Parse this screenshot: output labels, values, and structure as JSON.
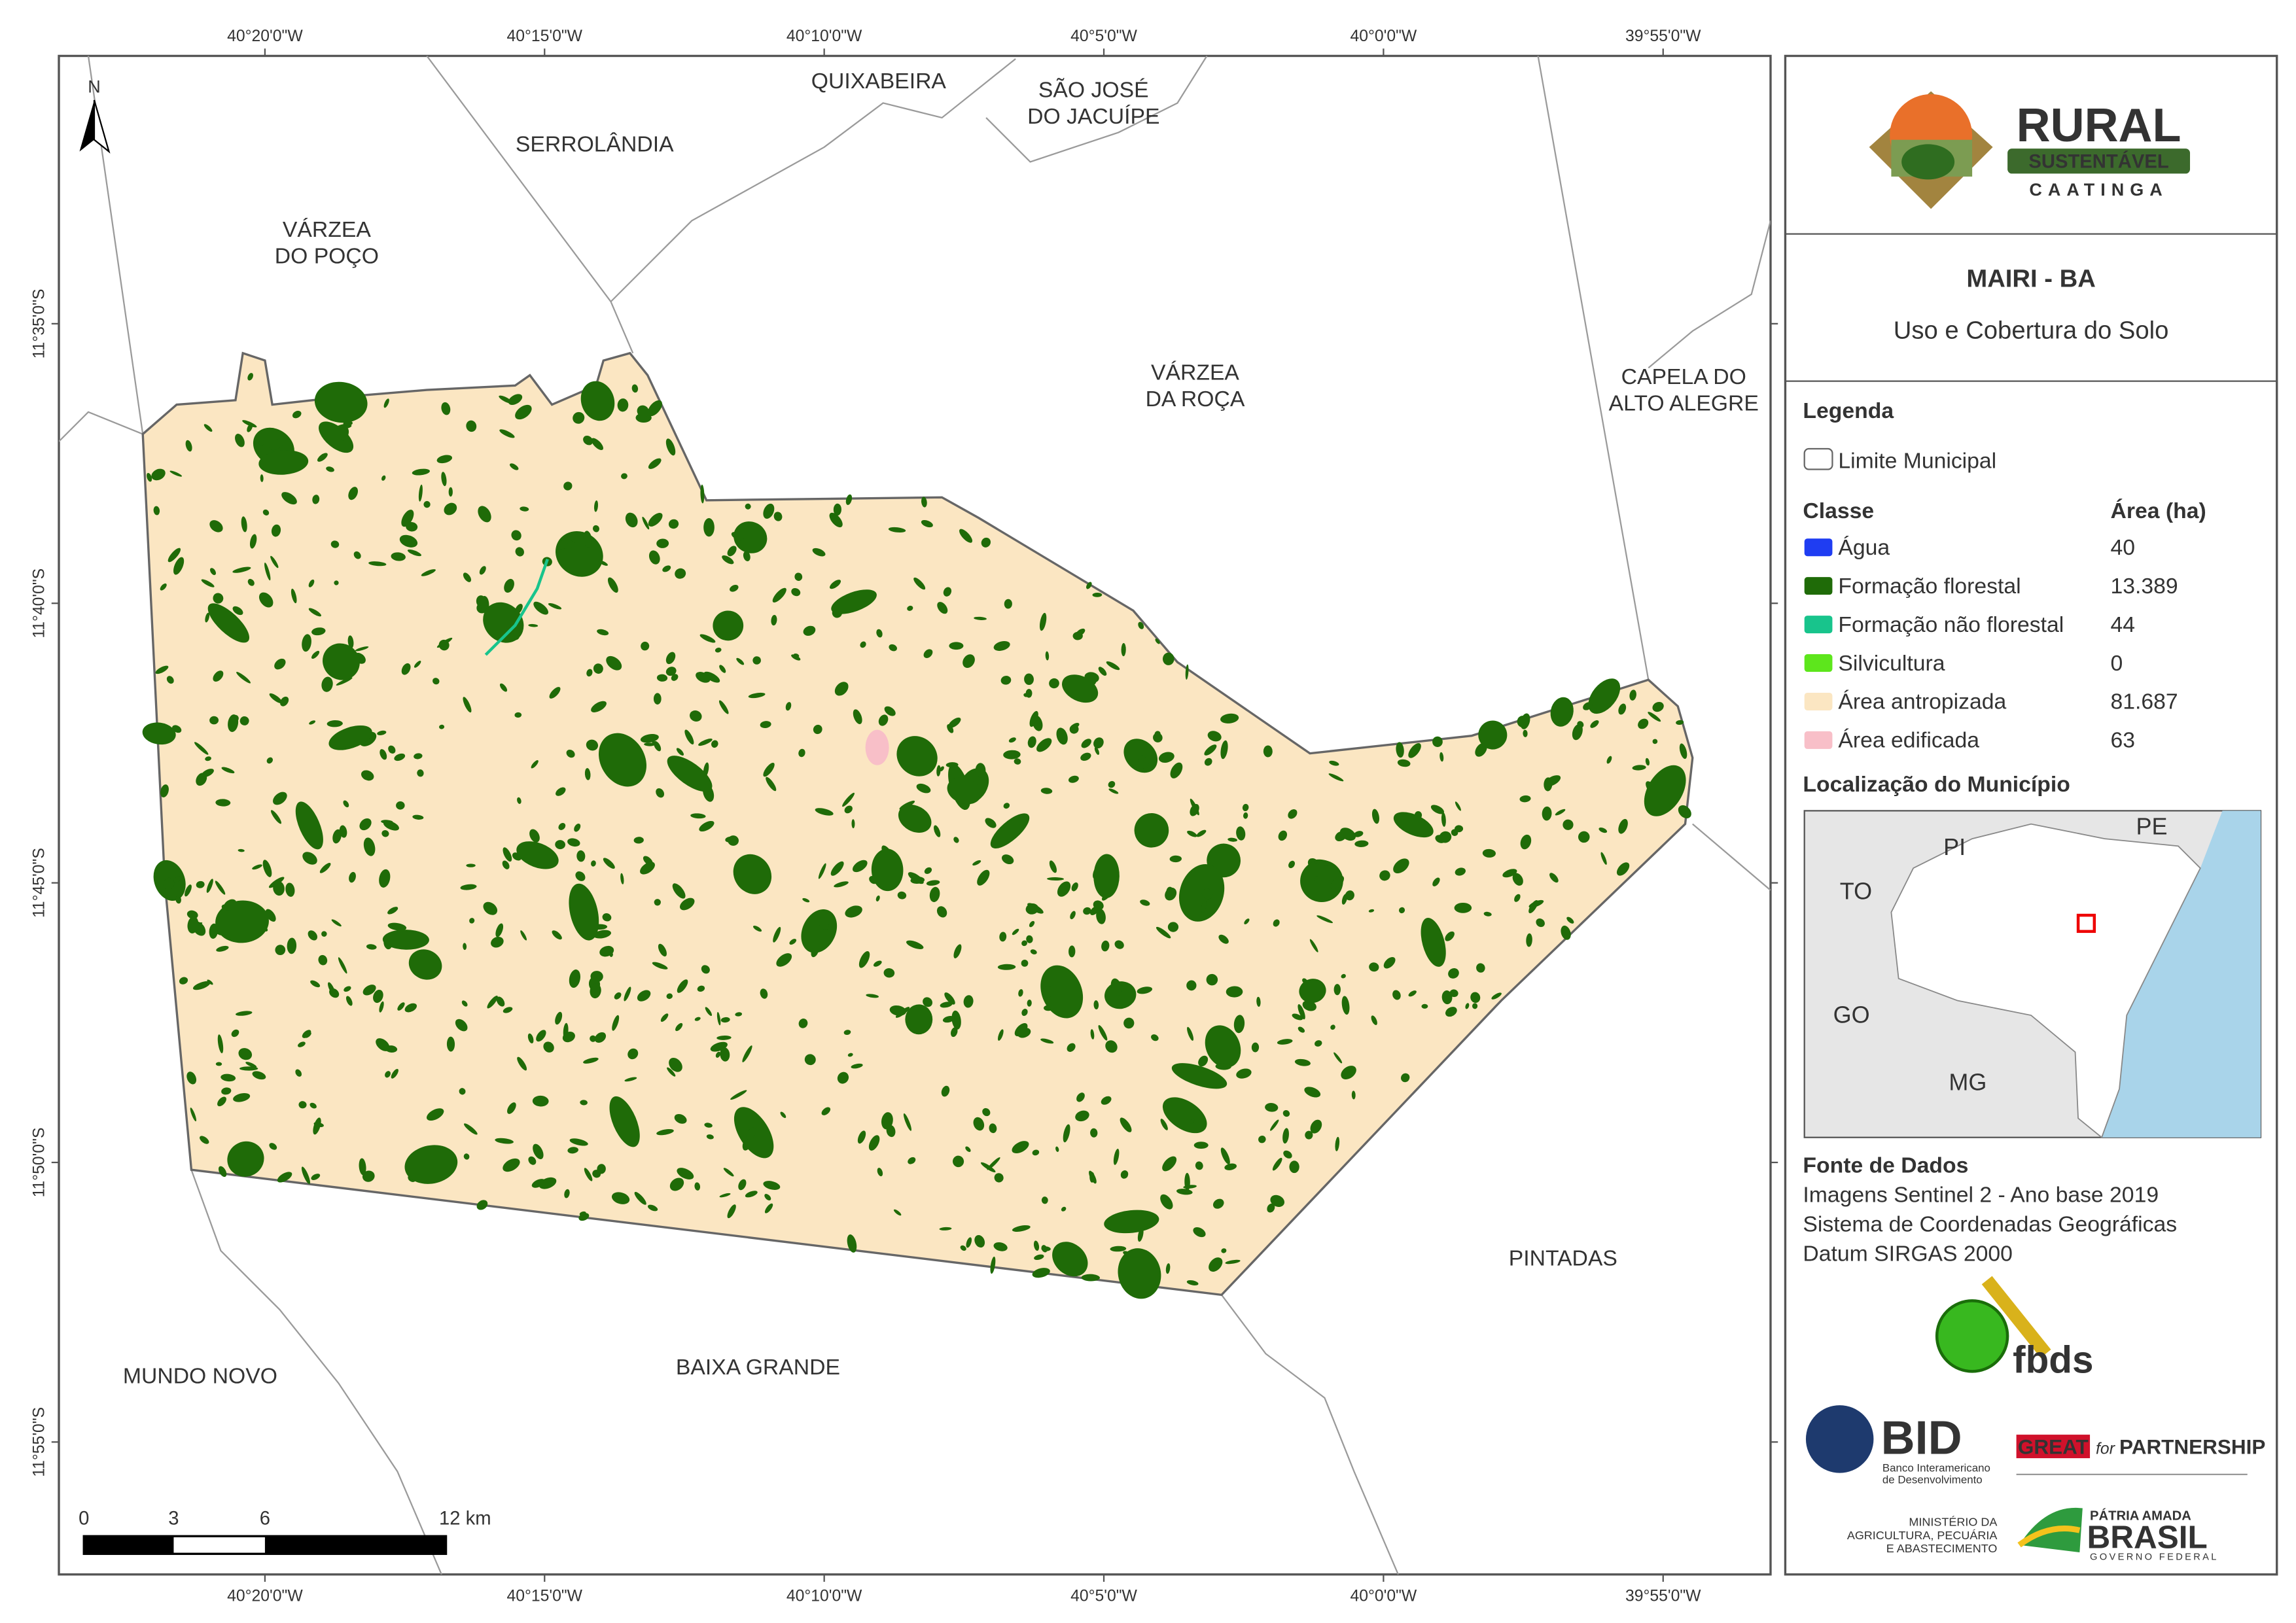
{
  "map": {
    "lon_labels": [
      "40°20'0\"W",
      "40°15'0\"W",
      "40°10'0\"W",
      "40°5'0\"W",
      "40°0'0\"W",
      "39°55'0\"W"
    ],
    "lat_labels": [
      "11°35'0\"S",
      "11°40'0\"S",
      "11°45'0\"S",
      "11°50'0\"S",
      "11°55'0\"S"
    ],
    "places": [
      {
        "lines": [
          "QUIXABEIRA"
        ]
      },
      {
        "lines": [
          "SÃO JOSÉ",
          "DO JACUÍPE"
        ]
      },
      {
        "lines": [
          "SERROLÂNDIA"
        ]
      },
      {
        "lines": [
          "VÁRZEA",
          "DO POÇO"
        ]
      },
      {
        "lines": [
          "VÁRZEA",
          "DA ROÇA"
        ]
      },
      {
        "lines": [
          "CAPELA DO",
          "ALTO ALEGRE"
        ]
      },
      {
        "lines": [
          "PINTADAS"
        ]
      },
      {
        "lines": [
          "BAIXA GRANDE"
        ]
      },
      {
        "lines": [
          "MUNDO NOVO"
        ]
      }
    ],
    "north": "N",
    "scale_labels": [
      "0",
      "3",
      "6",
      "12 km"
    ]
  },
  "panel": {
    "logo": {
      "name": "RURAL",
      "sub": "SUSTENTÁVEL",
      "region": "CAATINGA"
    },
    "title": "MAIRI - BA",
    "subtitle": "Uso e Cobertura do Solo",
    "legend": {
      "heading": "Legenda",
      "boundary": "Limite Municipal",
      "class_header": "Classe",
      "area_header": "Área (ha)",
      "classes": [
        {
          "name": "Água",
          "area": "40",
          "color": "#1f3df2"
        },
        {
          "name": "Formação florestal",
          "area": "13.389",
          "color": "#1f6b08"
        },
        {
          "name": "Formação não florestal",
          "area": "44",
          "color": "#18c48c"
        },
        {
          "name": "Silvicultura",
          "area": "0",
          "color": "#5de61c"
        },
        {
          "name": "Área antropizada",
          "area": "81.687",
          "color": "#fbe6c2"
        },
        {
          "name": "Área edificada",
          "area": "63",
          "color": "#f8bfc8"
        }
      ]
    },
    "location": {
      "heading": "Localização do Município",
      "states": [
        "PI",
        "PE",
        "TO",
        "GO",
        "MG"
      ]
    },
    "sources": {
      "heading": "Fonte de Dados",
      "lines": [
        "Imagens Sentinel 2 - Ano base 2019",
        "Sistema de Coordenadas Geográficas",
        "Datum SIRGAS 2000"
      ]
    },
    "partners": {
      "fbds": "fbds",
      "bid": "BID",
      "bid_full": [
        "Banco Interamericano",
        "de Desenvolvimento"
      ],
      "great": "GREAT",
      "great_for": "for",
      "great_partnership": "PARTNERSHIP",
      "ministry": [
        "MINISTÉRIO DA",
        "AGRICULTURA, PECUÁRIA",
        "E ABASTECIMENTO"
      ],
      "brasil_top": "PÁTRIA AMADA",
      "brasil": "BRASIL",
      "brasil_gov": "GOVERNO FEDERAL"
    }
  }
}
